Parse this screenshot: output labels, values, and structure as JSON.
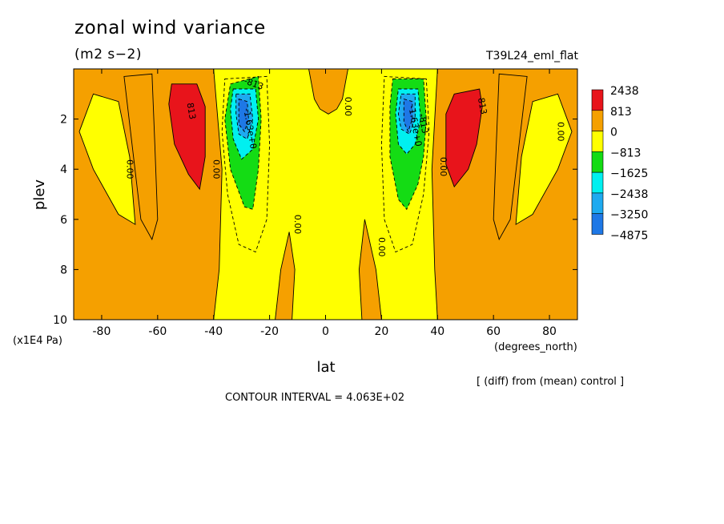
{
  "header": {
    "title": "zonal wind variance",
    "units": "(m2 s−2)",
    "experiment": "T39L24_eml_flat"
  },
  "footer": {
    "comparison": "[ (diff) from (mean) control ]",
    "contour_interval": "CONTOUR INTERVAL = 4.063E+02"
  },
  "chart_data": {
    "type": "heatmap",
    "title": "zonal wind variance",
    "units": "(m2 s−2)",
    "xlabel": "lat",
    "xunits": "(degrees_north)",
    "ylabel": "plev",
    "yunits": "(x1E4 Pa)",
    "xlim": [
      -90,
      90
    ],
    "ylim": [
      10,
      0
    ],
    "x_ticks": [
      -80,
      -60,
      -40,
      -20,
      0,
      20,
      40,
      60,
      80
    ],
    "y_ticks": [
      2,
      4,
      6,
      8,
      10
    ],
    "contour_interval": 406.3,
    "legend": {
      "placement": "right",
      "levels": [
        {
          "label": "2438",
          "color": "#e8141b"
        },
        {
          "label": "813",
          "color": "#f5a000"
        },
        {
          "label": "0",
          "color": "#ffff00"
        },
        {
          "label": "−813",
          "color": "#14dc14"
        },
        {
          "label": "−1625",
          "color": "#00f0f0"
        },
        {
          "label": "−2438",
          "color": "#1eaaf0"
        },
        {
          "label": "−3250",
          "color": "#1e78e6"
        },
        {
          "label": "−4875",
          "color": null
        }
      ]
    },
    "contour_labels": [
      {
        "text": "813",
        "lat": -49,
        "plev": 1.7,
        "rotate": 80
      },
      {
        "text": "0.00",
        "lat": -40,
        "plev": 4.0,
        "rotate": 90
      },
      {
        "text": "0.00",
        "lat": -71,
        "plev": 4.0,
        "rotate": 90
      },
      {
        "text": "-813",
        "lat": -26,
        "plev": 0.7,
        "rotate": 20
      },
      {
        "text": "-1.63e+0",
        "lat": -28,
        "plev": 2.4,
        "rotate": 80
      },
      {
        "text": "0.00",
        "lat": -11,
        "plev": 6.2,
        "rotate": 90
      },
      {
        "text": "0.00",
        "lat": 7,
        "plev": 1.5,
        "rotate": 90
      },
      {
        "text": "0.00",
        "lat": 19,
        "plev": 7.1,
        "rotate": 90
      },
      {
        "text": "-813",
        "lat": 34,
        "plev": 2.2,
        "rotate": 80
      },
      {
        "text": "-1.63e+0",
        "lat": 31,
        "plev": 2.3,
        "rotate": 80
      },
      {
        "text": "0.00",
        "lat": 41,
        "plev": 3.9,
        "rotate": 90
      },
      {
        "text": "813",
        "lat": 55,
        "plev": 1.5,
        "rotate": 80
      },
      {
        "text": "0.00",
        "lat": 83,
        "plev": 2.5,
        "rotate": 90
      }
    ]
  }
}
